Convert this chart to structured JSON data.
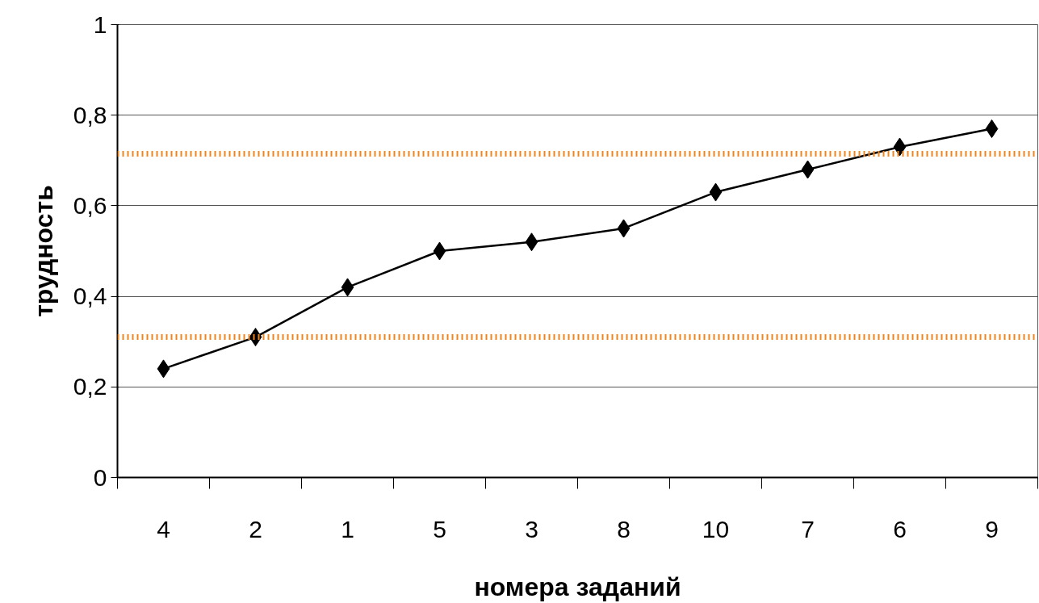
{
  "chart_data": {
    "type": "line",
    "xlabel": "номера заданий",
    "ylabel": "трудность",
    "categories": [
      "4",
      "2",
      "1",
      "5",
      "3",
      "8",
      "10",
      "7",
      "6",
      "9"
    ],
    "series": [
      {
        "color": "#000000",
        "values": [
          0.24,
          0.31,
          0.42,
          0.5,
          0.52,
          0.55,
          0.63,
          0.68,
          0.73,
          0.77
        ]
      }
    ],
    "ylim": [
      0,
      1
    ],
    "yticks": [
      0,
      {
        "value": 0.2,
        "label": "0,2"
      },
      {
        "value": 0.4,
        "label": "0,4"
      },
      {
        "value": 0.6,
        "label": "0,6"
      },
      {
        "value": 0.8,
        "label": "0,8"
      },
      1
    ],
    "ref_lines": [
      {
        "axis": "y",
        "value": 0.715,
        "color": "#f0841e",
        "line_style": "dotted"
      },
      {
        "axis": "y",
        "value": 0.31,
        "color": "#f0841e",
        "line_style": "dotted"
      }
    ],
    "grid": "y",
    "marker": "diamond",
    "line_style": "solid"
  }
}
